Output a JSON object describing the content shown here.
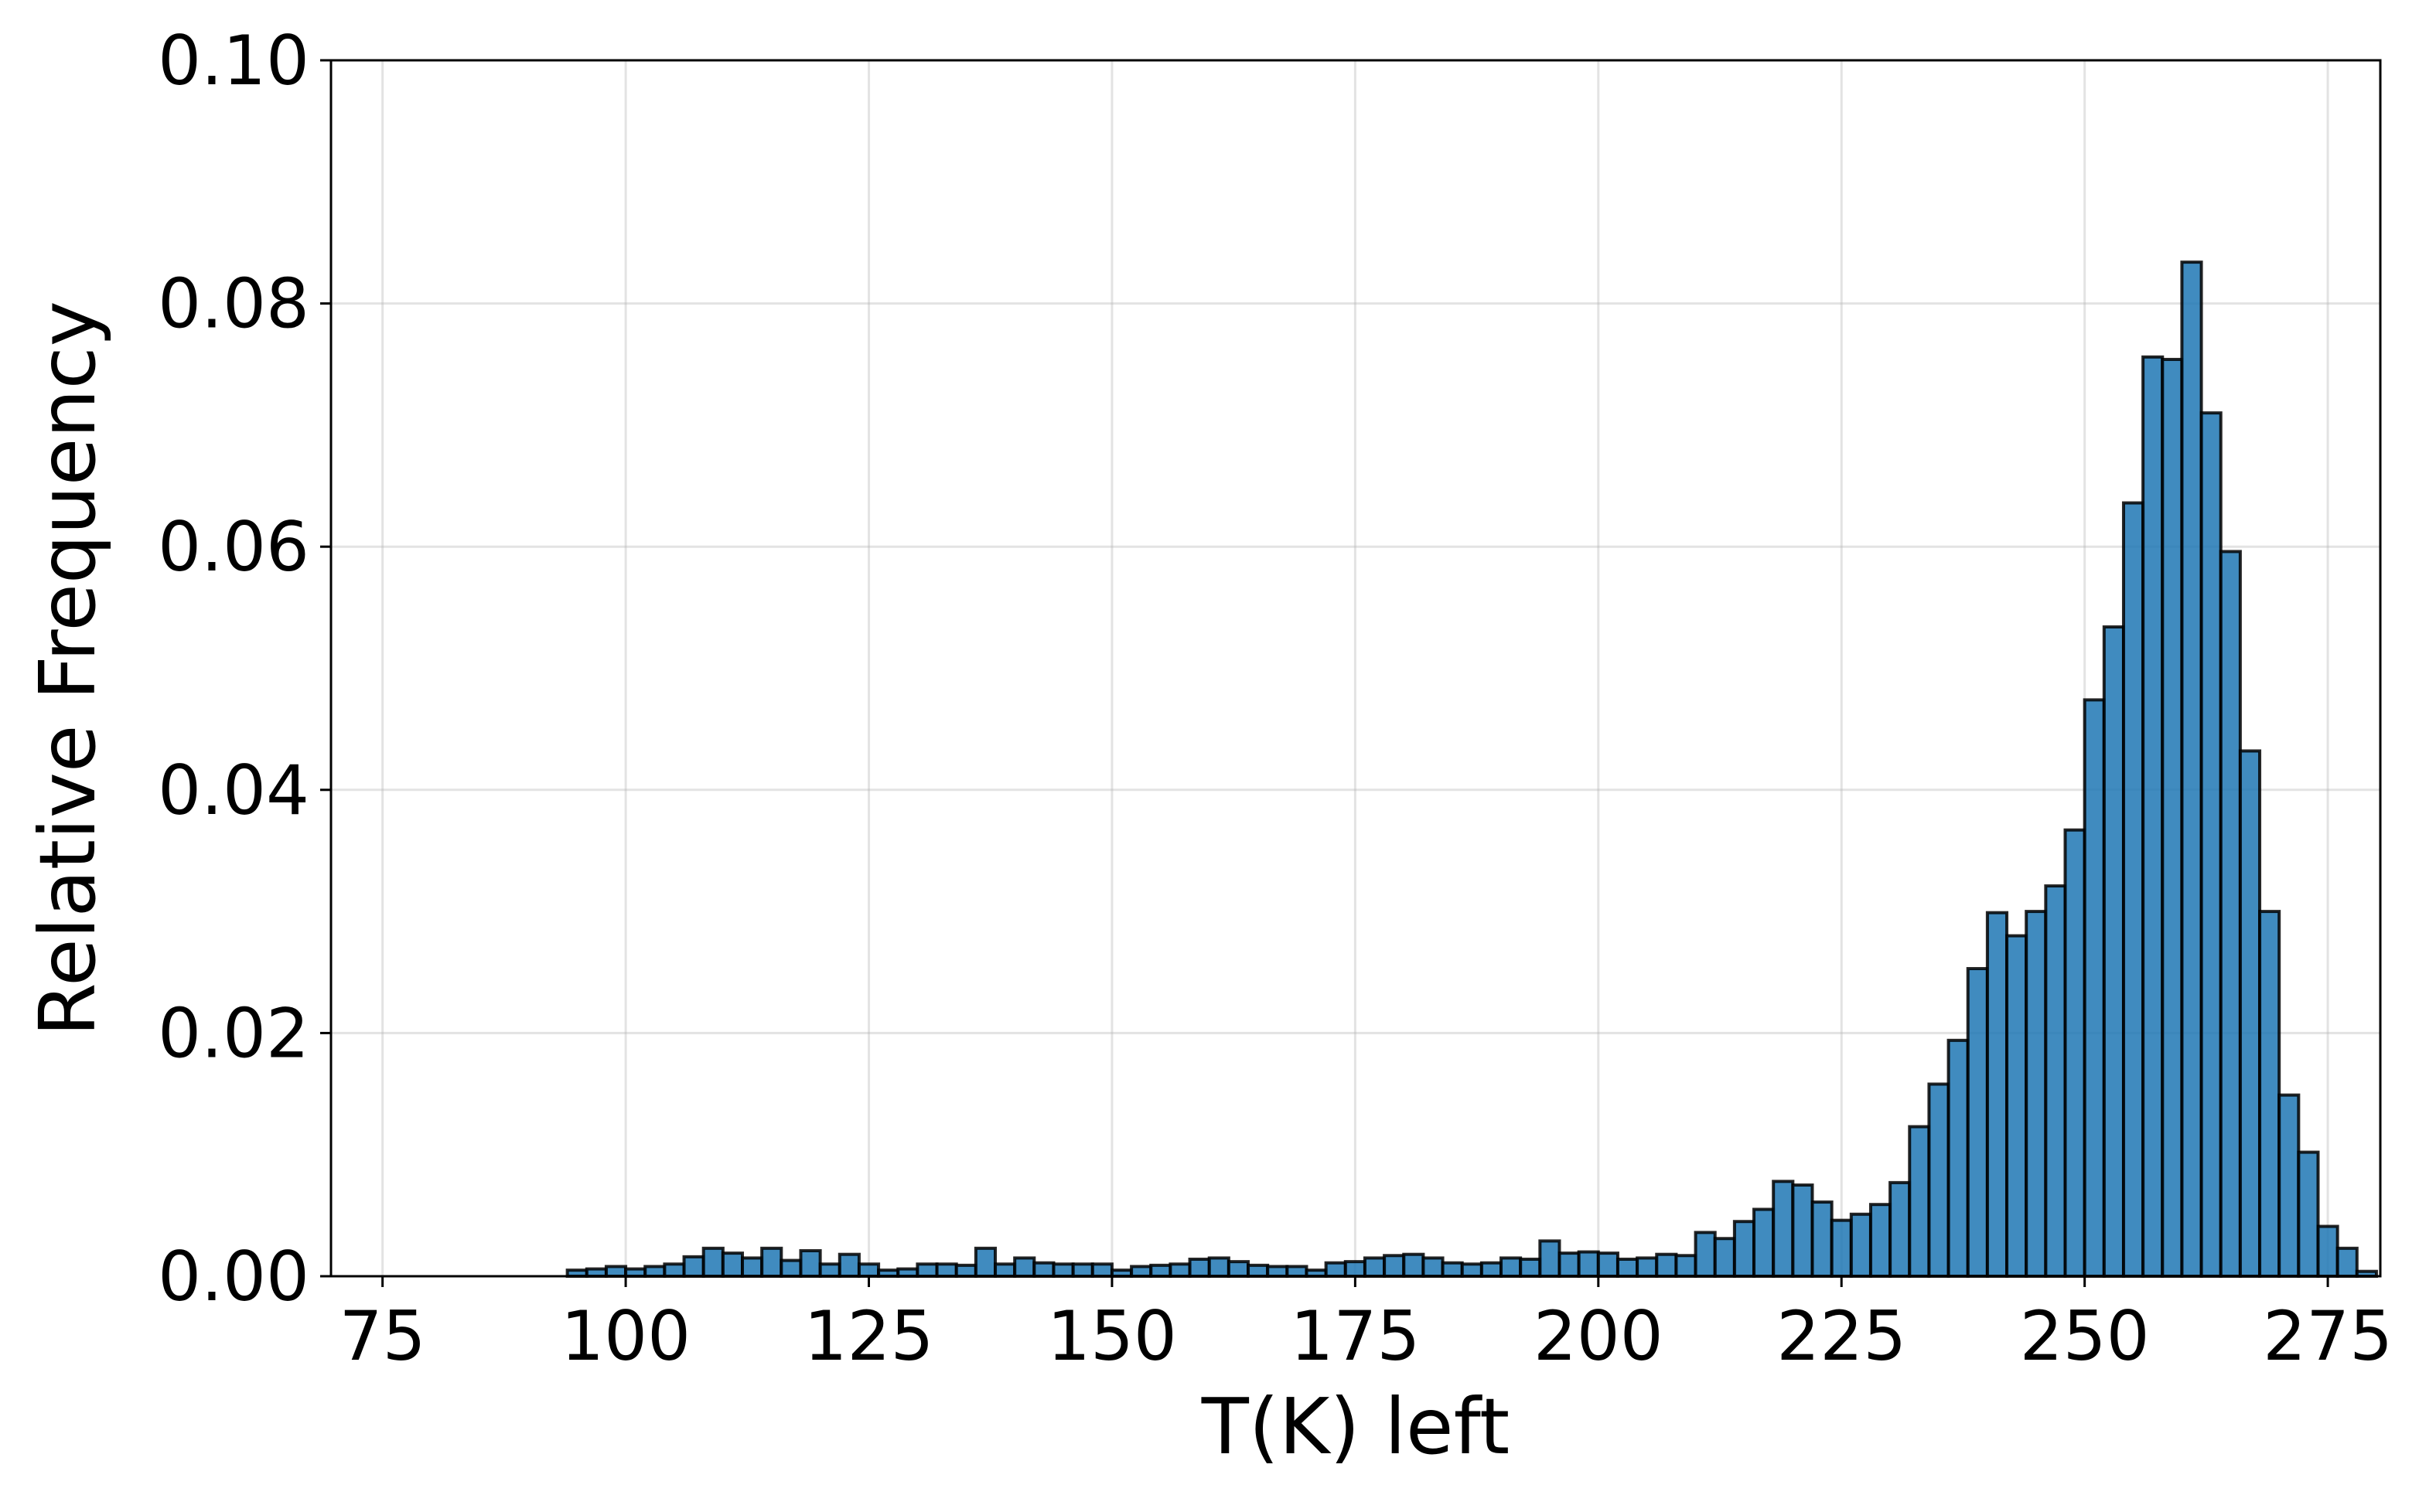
{
  "chart_data": {
    "type": "histogram",
    "xlabel": "T(K) left",
    "ylabel": "Relative Frequency",
    "bins": [
      76,
      78,
      80,
      82,
      84,
      86,
      88,
      90,
      92,
      94,
      96,
      98,
      100,
      102,
      104,
      106,
      108,
      110,
      112,
      114,
      116,
      118,
      120,
      122,
      124,
      126,
      128,
      130,
      132,
      134,
      136,
      138,
      140,
      142,
      144,
      146,
      148,
      150,
      152,
      154,
      156,
      158,
      160,
      162,
      164,
      166,
      168,
      170,
      172,
      174,
      176,
      178,
      180,
      182,
      184,
      186,
      188,
      190,
      192,
      194,
      196,
      198,
      200,
      202,
      204,
      206,
      208,
      210,
      212,
      214,
      216,
      218,
      220,
      222,
      224,
      226,
      228,
      230,
      232,
      234,
      236,
      238,
      240,
      242,
      244,
      246,
      248,
      250,
      252,
      254,
      256,
      258,
      260,
      262,
      264,
      266,
      268,
      270,
      272,
      274,
      276,
      278,
      280
    ],
    "values": [
      0,
      0,
      0,
      0,
      0,
      0,
      0,
      0,
      0,
      0.0005,
      0.0006,
      0.0008,
      0.0006,
      0.0008,
      0.001,
      0.0016,
      0.0023,
      0.0019,
      0.0015,
      0.0023,
      0.0013,
      0.0021,
      0.001,
      0.0018,
      0.001,
      0.0005,
      0.0006,
      0.001,
      0.001,
      0.0009,
      0.0023,
      0.001,
      0.0015,
      0.0011,
      0.001,
      0.001,
      0.001,
      0.0005,
      0.0008,
      0.0009,
      0.001,
      0.0014,
      0.0015,
      0.0012,
      0.0009,
      0.0008,
      0.0008,
      0.0005,
      0.0011,
      0.0012,
      0.0015,
      0.0017,
      0.0018,
      0.0015,
      0.0011,
      0.001,
      0.0011,
      0.0015,
      0.0014,
      0.0029,
      0.0019,
      0.002,
      0.0019,
      0.0014,
      0.0015,
      0.0018,
      0.0017,
      0.0036,
      0.0031,
      0.0045,
      0.0055,
      0.0078,
      0.0075,
      0.0061,
      0.0046,
      0.0051,
      0.0059,
      0.0077,
      0.0123,
      0.0158,
      0.0194,
      0.0253,
      0.0299,
      0.028,
      0.03,
      0.0321,
      0.0367,
      0.0474,
      0.0534,
      0.0636,
      0.0756,
      0.0754,
      0.0834,
      0.071,
      0.0596,
      0.0432,
      0.03,
      0.0149,
      0.0102,
      0.0041,
      0.0023,
      0.0004
    ],
    "color": "#1f77b4",
    "edgecolor": "#000000",
    "xlim": [
      69.7,
      280.4
    ],
    "ylim": [
      0,
      0.1
    ],
    "xticks": [
      75,
      100,
      125,
      150,
      175,
      200,
      225,
      250,
      275
    ],
    "yticks": [
      {
        "value": 0,
        "label": "0.00"
      },
      {
        "value": 0.02,
        "label": "0.02"
      },
      {
        "value": 0.04,
        "label": "0.04"
      },
      {
        "value": 0.06,
        "label": "0.06"
      },
      {
        "value": 0.08,
        "label": "0.08"
      },
      {
        "value": 0.1,
        "label": "0.10"
      }
    ],
    "grid": true
  }
}
